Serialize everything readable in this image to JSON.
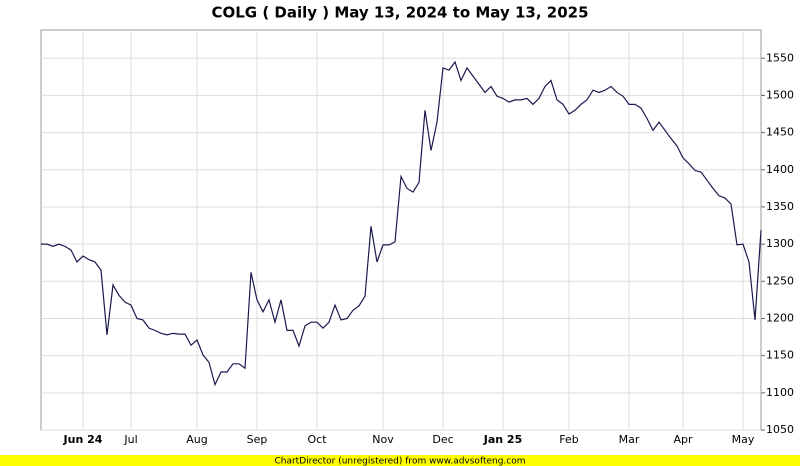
{
  "chart_data": {
    "type": "line",
    "title": "COLG ( Daily ) May 13, 2024 to May 13, 2025",
    "footer": "ChartDirector (unregistered) from www.advsofteng.com",
    "categories": [
      null,
      null,
      null,
      null,
      null,
      null,
      null,
      "Jun 24",
      null,
      null,
      null,
      null,
      null,
      null,
      null,
      "Jul",
      null,
      null,
      null,
      null,
      null,
      null,
      null,
      null,
      null,
      null,
      "Aug",
      null,
      null,
      null,
      null,
      null,
      null,
      null,
      null,
      null,
      "Sep",
      null,
      null,
      null,
      null,
      null,
      null,
      null,
      null,
      null,
      "Oct",
      null,
      null,
      null,
      null,
      null,
      null,
      null,
      null,
      null,
      null,
      "Nov",
      null,
      null,
      null,
      null,
      null,
      null,
      null,
      null,
      null,
      "Dec",
      null,
      null,
      null,
      null,
      null,
      null,
      null,
      null,
      null,
      "Jan 25",
      null,
      null,
      null,
      null,
      null,
      null,
      null,
      null,
      null,
      null,
      "Feb",
      null,
      null,
      null,
      null,
      null,
      null,
      null,
      null,
      null,
      "Mar",
      null,
      null,
      null,
      null,
      null,
      null,
      null,
      null,
      "Apr",
      null,
      null,
      null,
      null,
      null,
      null,
      null,
      null,
      null,
      "May",
      null,
      null,
      null
    ],
    "series": [
      {
        "name": "COLG",
        "color": "#1a1a4e",
        "values": [
          1300,
          1300,
          1297,
          1300,
          1297,
          1292,
          1276,
          1284,
          1279,
          1276,
          1265,
          1178,
          1245,
          1231,
          1222,
          1218,
          1200,
          1198,
          1187,
          1184,
          1180,
          1178,
          1180,
          1179,
          1179,
          1164,
          1171,
          1151,
          1141,
          1111,
          1128,
          1128,
          1139,
          1139,
          1133,
          1262,
          1225,
          1209,
          1225,
          1195,
          1225,
          1184,
          1184,
          1163,
          1190,
          1195,
          1195,
          1187,
          1195,
          1218,
          1198,
          1200,
          1211,
          1217,
          1230,
          1324,
          1276,
          1299,
          1299,
          1303,
          1391,
          1375,
          1370,
          1383,
          1480,
          1426,
          1464,
          1537,
          1534,
          1545,
          1520,
          1537,
          1526,
          1515,
          1504,
          1512,
          1499,
          1496,
          1491,
          1494,
          1494,
          1496,
          1488,
          1496,
          1512,
          1520,
          1494,
          1488,
          1475,
          1480,
          1488,
          1494,
          1507,
          1504,
          1507,
          1512,
          1504,
          1499,
          1488,
          1488,
          1483,
          1469,
          1453,
          1464,
          1453,
          1442,
          1432,
          1416,
          1408,
          1399,
          1397,
          1386,
          1375,
          1365,
          1362,
          1354,
          1299,
          1300,
          1276,
          1198,
          1319
        ]
      }
    ],
    "ylim": [
      1050,
      1588
    ],
    "yticks": [
      1050,
      1100,
      1150,
      1200,
      1250,
      1300,
      1350,
      1400,
      1450,
      1500,
      1550
    ],
    "grid": true
  }
}
